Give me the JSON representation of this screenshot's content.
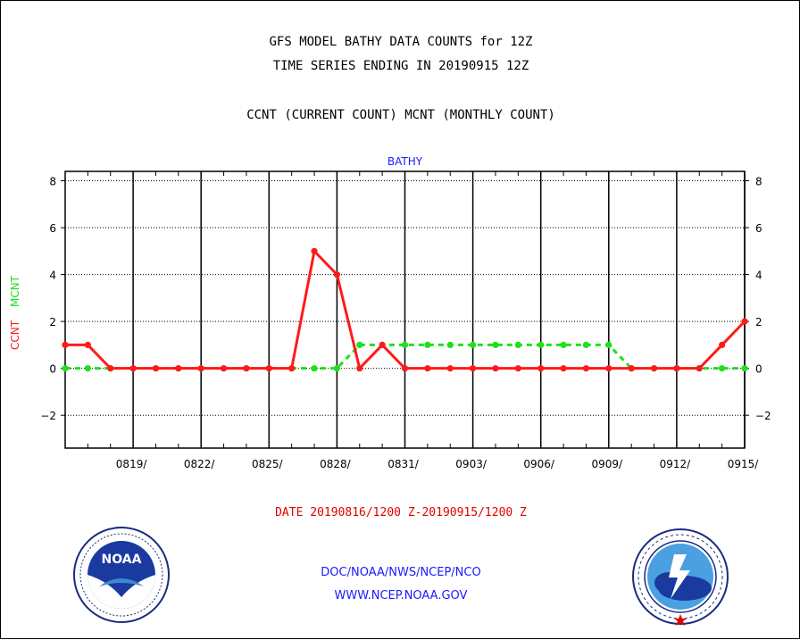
{
  "header": {
    "line1": "GFS MODEL BATHY DATA COUNTS for 12Z",
    "line2": "TIME SERIES ENDING IN 20190915 12Z",
    "line3": "CCNT (CURRENT COUNT) MCNT (MONTHLY COUNT)"
  },
  "footer": {
    "date_range": "DATE 20190816/1200 Z-20190915/1200 Z",
    "org": "DOC/NOAA/NWS/NCEP/NCO",
    "url": "WWW.NCEP.NOAA.GOV"
  },
  "logos": {
    "left_text": "NOAA",
    "left_ring": "NATIONAL OCEANIC AND ATMOSPHERIC ADMINISTRATION · U.S. DEPARTMENT OF COMMERCE",
    "right_ring": "NATIONAL WEATHER SERVICE"
  },
  "colors": {
    "ccnt": "#ff1a1a",
    "mcnt": "#1ee01e",
    "plot_title": "#1a1aff"
  },
  "chart_data": {
    "type": "line",
    "title": "BATHY",
    "ylabel_series": [
      "CCNT",
      "MCNT"
    ],
    "ylim": [
      -3.4,
      8.4
    ],
    "yticks": [
      -2,
      0,
      2,
      4,
      6,
      8
    ],
    "grid": true,
    "x_start_day": 0,
    "x_end_day": 30,
    "xtick_days": [
      3,
      6,
      9,
      12,
      15,
      18,
      21,
      24,
      27,
      30
    ],
    "xtick_labels": [
      "0819/",
      "0822/",
      "0825/",
      "0828/",
      "0831/",
      "0903/",
      "0906/",
      "0909/",
      "0912/",
      "0915/"
    ],
    "series": [
      {
        "name": "CCNT",
        "style": "solid",
        "x": [
          0,
          1,
          2,
          3,
          4,
          5,
          6,
          7,
          8,
          9,
          10,
          11,
          12,
          13,
          14,
          15,
          16,
          17,
          18,
          19,
          20,
          21,
          22,
          23,
          24,
          25,
          26,
          27,
          28,
          29,
          30
        ],
        "values": [
          1,
          1,
          0,
          0,
          0,
          0,
          0,
          0,
          0,
          0,
          0,
          5,
          4,
          0,
          1,
          0,
          0,
          0,
          0,
          0,
          0,
          0,
          0,
          0,
          0,
          0,
          0,
          0,
          0,
          1,
          2
        ]
      },
      {
        "name": "MCNT",
        "style": "dashed",
        "x": [
          0,
          1,
          2,
          3,
          4,
          5,
          6,
          7,
          8,
          9,
          10,
          11,
          12,
          13,
          14,
          15,
          16,
          17,
          18,
          19,
          20,
          21,
          22,
          23,
          24,
          25,
          26,
          27,
          28,
          29,
          30
        ],
        "values": [
          0,
          0,
          0,
          0,
          0,
          0,
          0,
          0,
          0,
          0,
          0,
          0,
          0,
          1,
          1,
          1,
          1,
          1,
          1,
          1,
          1,
          1,
          1,
          1,
          1,
          0,
          0,
          0,
          0,
          0,
          0
        ]
      }
    ]
  }
}
